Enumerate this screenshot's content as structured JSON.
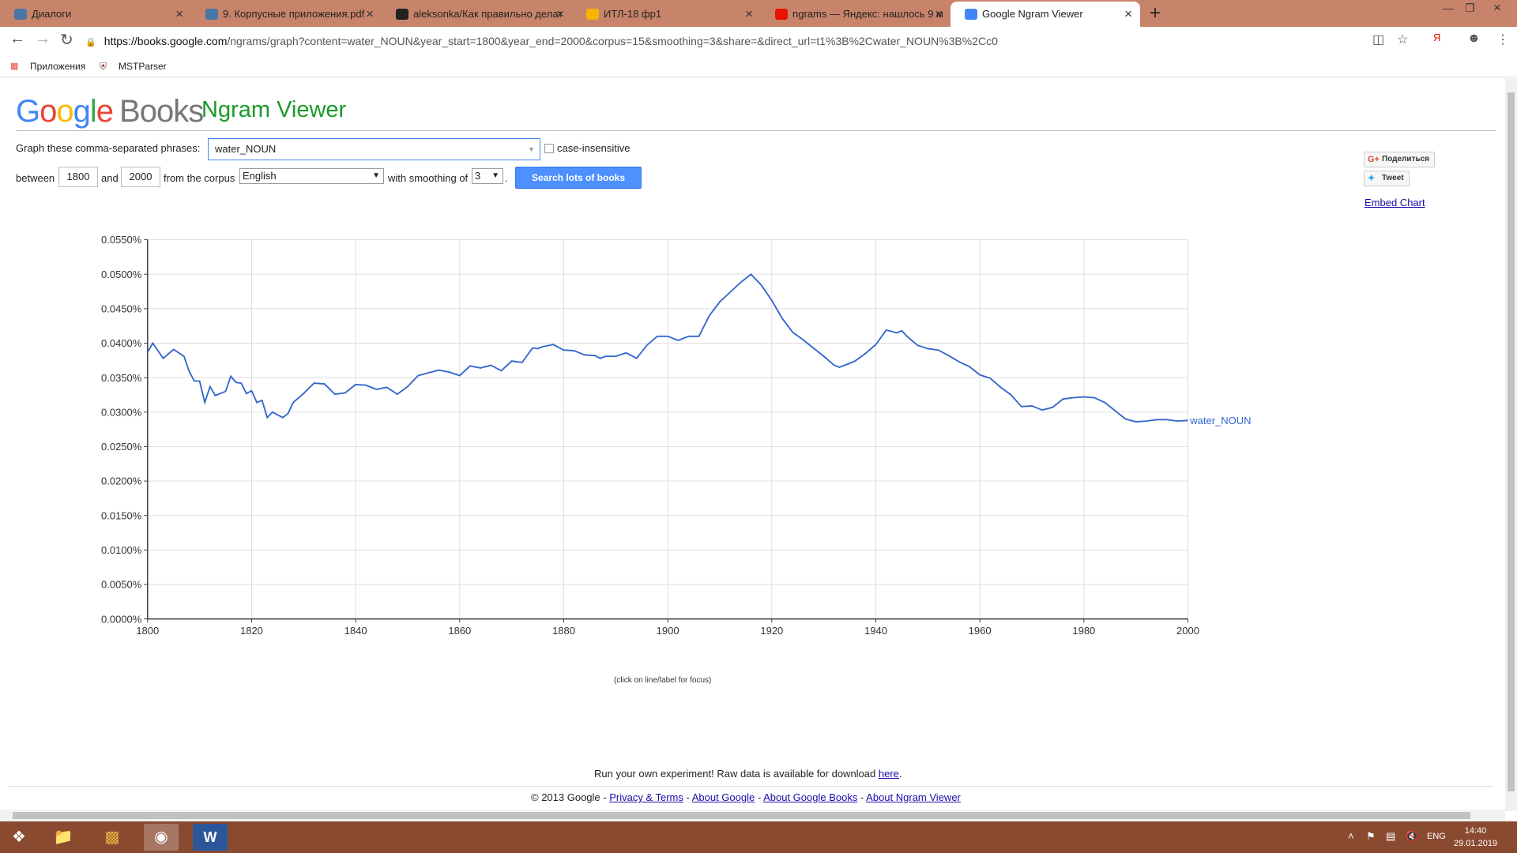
{
  "browser": {
    "tabs": [
      {
        "title": "Диалоги",
        "icon": "chat-icon",
        "color": "#4a76a8"
      },
      {
        "title": "9. Корпусные приложения.pdf",
        "icon": "vk-icon",
        "color": "#4a76a8"
      },
      {
        "title": "aleksonka/Как правильно делат",
        "icon": "github-icon",
        "color": "#222222"
      },
      {
        "title": "ИТЛ-18 фр1",
        "icon": "drive-icon",
        "color": "#f4b400"
      },
      {
        "title": "ngrams — Яндекс: нашлось 9 м",
        "icon": "yandex-icon",
        "color": "#e61400"
      },
      {
        "title": "Google Ngram Viewer",
        "icon": "google-icon",
        "color": "#4285f4"
      }
    ],
    "url_host": "https://books.google.com",
    "url_path": "/ngrams/graph?content=water_NOUN&year_start=1800&year_end=2000&corpus=15&smoothing=3&share=&direct_url=t1%3B%2Cwater_NOUN%3B%2Cc0",
    "bookmarks": [
      "Приложения",
      "MSTParser"
    ]
  },
  "page": {
    "logo_google": [
      "G",
      "o",
      "o",
      "g",
      "l",
      "e"
    ],
    "logo_books": "Books",
    "title": "Ngram Viewer",
    "phrases_label": "Graph these comma-separated phrases:",
    "phrase_value": "water_NOUN",
    "case_insensitive_label": "case-insensitive",
    "between_label": "between",
    "year_start": "1800",
    "and_label": "and",
    "year_end": "2000",
    "corpus_label": "from the corpus",
    "corpus_value": "English",
    "smoothing_label": "with smoothing of",
    "smoothing_value": "3",
    "period": ".",
    "search_button": "Search lots of books",
    "share_label": "Поделиться",
    "tweet_label": "Tweet",
    "embed_label": "Embed Chart",
    "hint": "(click on line/label for focus)",
    "footer_run": "Run your own experiment! Raw data is available for download ",
    "footer_here": "here",
    "footer_dot": ".",
    "footer_copy": "© 2013 Google - ",
    "footer_links": [
      "Privacy & Terms",
      "About Google",
      "About Google Books",
      "About Ngram Viewer"
    ],
    "footer_sep": " - "
  },
  "chart_data": {
    "type": "line",
    "xlim": [
      1800,
      2000
    ],
    "ylim": [
      0,
      0.055
    ],
    "x_ticks": [
      "1800",
      "1820",
      "1840",
      "1860",
      "1880",
      "1900",
      "1920",
      "1940",
      "1960",
      "1980",
      "2000"
    ],
    "y_ticks": [
      "0.0000%",
      "0.0050%",
      "0.0100%",
      "0.0150%",
      "0.0200%",
      "0.0250%",
      "0.0300%",
      "0.0350%",
      "0.0400%",
      "0.0450%",
      "0.0500%",
      "0.0550%"
    ],
    "grid": true,
    "series": [
      {
        "name": "water_NOUN",
        "color": "#3366cc",
        "x": [
          1800,
          1801,
          1803,
          1805,
          1807,
          1808,
          1809,
          1810,
          1811,
          1812,
          1813,
          1815,
          1816,
          1817,
          1818,
          1819,
          1820,
          1821,
          1822,
          1823,
          1824,
          1825,
          1826,
          1827,
          1828,
          1830,
          1832,
          1834,
          1836,
          1838,
          1840,
          1842,
          1844,
          1846,
          1848,
          1850,
          1852,
          1854,
          1856,
          1858,
          1860,
          1862,
          1864,
          1866,
          1868,
          1870,
          1872,
          1874,
          1875,
          1876,
          1878,
          1880,
          1882,
          1884,
          1886,
          1887,
          1888,
          1890,
          1892,
          1894,
          1896,
          1898,
          1900,
          1902,
          1904,
          1906,
          1908,
          1910,
          1912,
          1914,
          1916,
          1918,
          1920,
          1922,
          1924,
          1926,
          1928,
          1930,
          1932,
          1933,
          1934,
          1936,
          1938,
          1940,
          1942,
          1944,
          1945,
          1946,
          1948,
          1950,
          1952,
          1954,
          1956,
          1958,
          1960,
          1962,
          1964,
          1966,
          1968,
          1970,
          1972,
          1974,
          1976,
          1978,
          1980,
          1982,
          1984,
          1986,
          1988,
          1990,
          1992,
          1994,
          1996,
          1998,
          2000
        ],
        "values": [
          0.0387,
          0.04,
          0.0378,
          0.0391,
          0.0381,
          0.0359,
          0.0345,
          0.0345,
          0.0314,
          0.0337,
          0.0324,
          0.033,
          0.0352,
          0.0343,
          0.0342,
          0.0327,
          0.0331,
          0.0314,
          0.0317,
          0.0292,
          0.03,
          0.0296,
          0.0292,
          0.0298,
          0.0314,
          0.0327,
          0.0342,
          0.0341,
          0.0326,
          0.0328,
          0.034,
          0.0339,
          0.0333,
          0.0336,
          0.0326,
          0.0337,
          0.0353,
          0.0357,
          0.0361,
          0.0358,
          0.0353,
          0.0367,
          0.0364,
          0.0368,
          0.036,
          0.0374,
          0.0372,
          0.0393,
          0.0392,
          0.0395,
          0.0398,
          0.039,
          0.0389,
          0.0383,
          0.0382,
          0.0378,
          0.0381,
          0.0381,
          0.0386,
          0.0378,
          0.0397,
          0.041,
          0.041,
          0.0404,
          0.041,
          0.041,
          0.044,
          0.046,
          0.0474,
          0.0488,
          0.05,
          0.0484,
          0.0462,
          0.0436,
          0.0416,
          0.0405,
          0.0393,
          0.0381,
          0.0368,
          0.0365,
          0.0368,
          0.0374,
          0.0385,
          0.0398,
          0.0419,
          0.0415,
          0.0418,
          0.041,
          0.0397,
          0.0392,
          0.039,
          0.0382,
          0.0373,
          0.0366,
          0.0354,
          0.0349,
          0.0336,
          0.0325,
          0.0308,
          0.0309,
          0.0303,
          0.0307,
          0.0319,
          0.0321,
          0.0322,
          0.0321,
          0.0314,
          0.0302,
          0.029,
          0.0286,
          0.0287,
          0.0289,
          0.0289,
          0.0287,
          0.0288
        ]
      }
    ]
  },
  "taskbar": {
    "lang": "ENG",
    "time": "14:40",
    "date": "29.01.2019"
  }
}
